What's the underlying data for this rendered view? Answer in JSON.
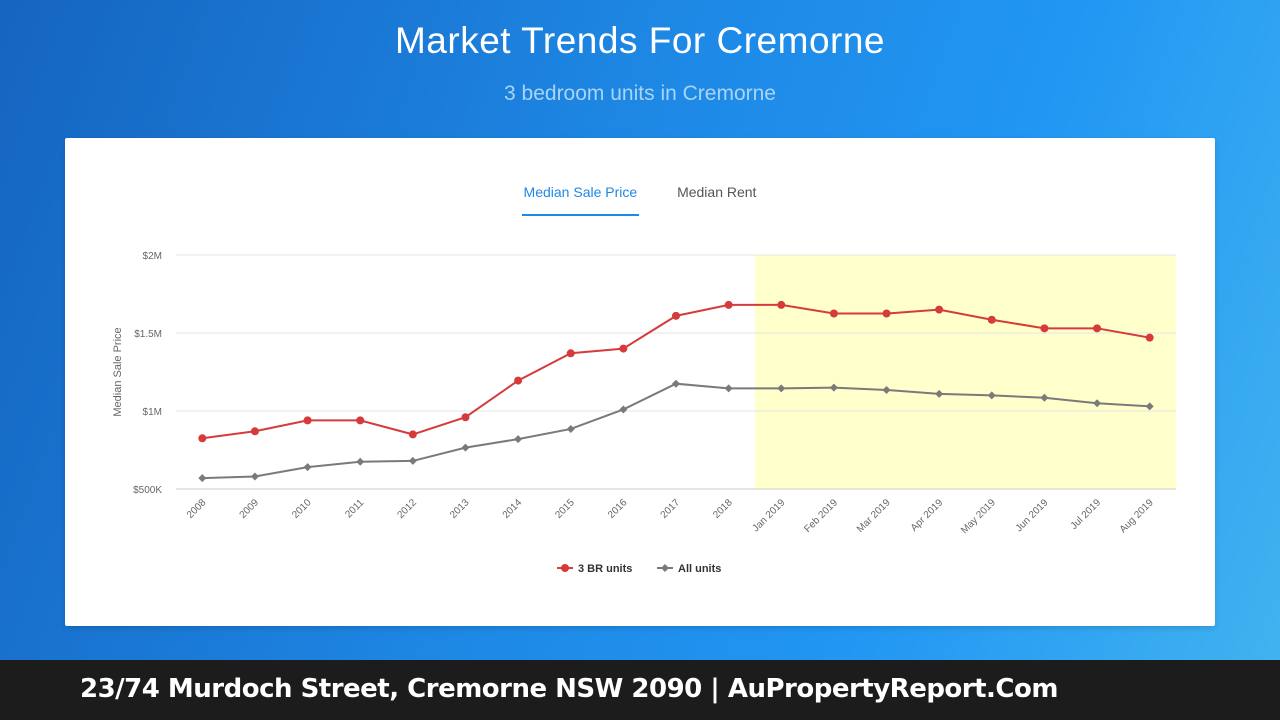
{
  "header": {
    "title": "Market Trends For Cremorne",
    "subtitle": "3 bedroom units in Cremorne"
  },
  "tabs": [
    {
      "label": "Median Sale Price",
      "active": true
    },
    {
      "label": "Median Rent",
      "active": false
    }
  ],
  "footer": {
    "text": "23/74 Murdoch Street, Cremorne NSW 2090 | AuPropertyReport.Com"
  },
  "colors": {
    "three_br": "#d63b3b",
    "all_units": "#7a7a7a",
    "highlight": "#ffffcc",
    "accent": "#1e88e5"
  },
  "chart_data": {
    "type": "line",
    "ylabel": "Median Sale Price",
    "ylim": [
      500000,
      2000000
    ],
    "y_ticks": [
      {
        "value": 500000,
        "label": "$500K"
      },
      {
        "value": 1000000,
        "label": "$1M"
      },
      {
        "value": 1500000,
        "label": "$1.5M"
      },
      {
        "value": 2000000,
        "label": "$2M"
      }
    ],
    "categories": [
      "2008",
      "2009",
      "2010",
      "2011",
      "2012",
      "2013",
      "2014",
      "2015",
      "2016",
      "2017",
      "2018",
      "Jan 2019",
      "Feb 2019",
      "Mar 2019",
      "Apr 2019",
      "May 2019",
      "Jun 2019",
      "Jul 2019",
      "Aug 2019"
    ],
    "highlight_range": [
      "Jan 2019",
      "Aug 2019"
    ],
    "grid": true,
    "legend_position": "bottom",
    "series": [
      {
        "name": "3 BR units",
        "color": "#d63b3b",
        "marker": "circle",
        "values": [
          825000,
          870000,
          940000,
          940000,
          850000,
          960000,
          1195000,
          1370000,
          1400000,
          1610000,
          1680000,
          1680000,
          1625000,
          1625000,
          1650000,
          1585000,
          1530000,
          1530000,
          1470000
        ]
      },
      {
        "name": "All units",
        "color": "#7a7a7a",
        "marker": "diamond",
        "values": [
          570000,
          580000,
          640000,
          675000,
          680000,
          765000,
          820000,
          885000,
          1010000,
          1175000,
          1145000,
          1145000,
          1150000,
          1135000,
          1110000,
          1100000,
          1085000,
          1050000,
          1030000
        ]
      }
    ]
  }
}
